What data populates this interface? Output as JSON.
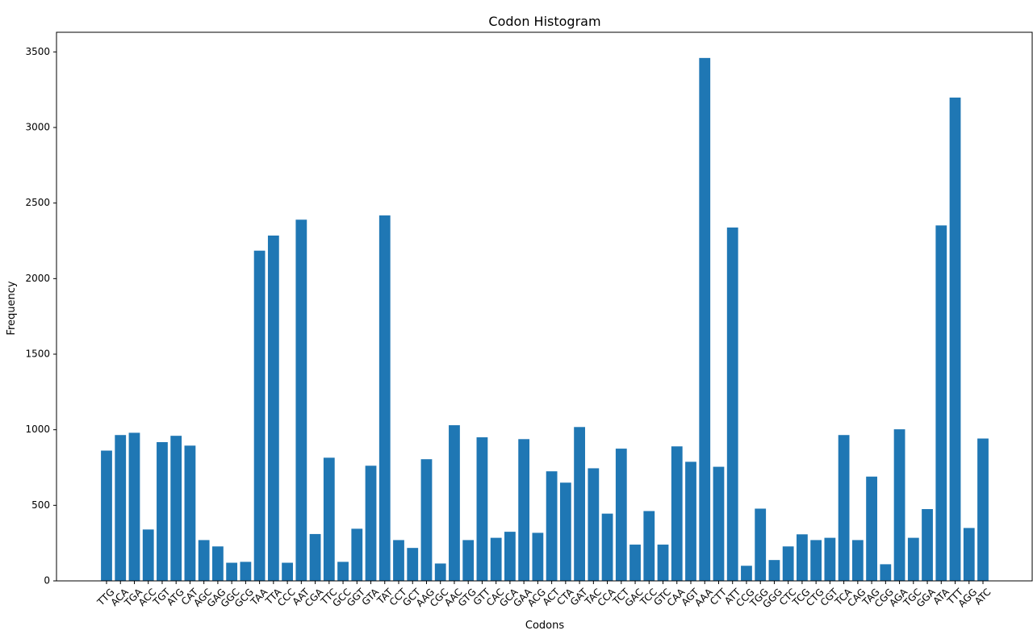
{
  "chart_data": {
    "type": "bar",
    "title": "Codon Histogram",
    "xlabel": "Codons",
    "ylabel": "Frequency",
    "ylim": [
      0,
      3630
    ],
    "yticks": [
      0,
      500,
      1000,
      1500,
      2000,
      2500,
      3000,
      3500
    ],
    "grid": false,
    "bar_color": "#1f77b4",
    "categories": [
      "TTG",
      "ACA",
      "TGA",
      "ACC",
      "TGT",
      "ATG",
      "CAT",
      "AGC",
      "GAG",
      "GGC",
      "GCG",
      "TAA",
      "TTA",
      "CCC",
      "AAT",
      "CGA",
      "TTC",
      "GCC",
      "GGT",
      "GTA",
      "TAT",
      "CCT",
      "GCT",
      "AAG",
      "CGC",
      "AAC",
      "GTG",
      "GTT",
      "CAC",
      "GCA",
      "GAA",
      "ACG",
      "ACT",
      "CTA",
      "GAT",
      "TAC",
      "CCA",
      "TCT",
      "GAC",
      "TCC",
      "GTC",
      "CAA",
      "AGT",
      "AAA",
      "CTT",
      "ATT",
      "CCG",
      "TGG",
      "GGG",
      "CTC",
      "TCG",
      "CTG",
      "CGT",
      "TCA",
      "CAG",
      "TAG",
      "CGG",
      "AGA",
      "TGC",
      "GGA",
      "ATA",
      "TTT",
      "AGG",
      "ATC"
    ],
    "values": [
      862,
      965,
      980,
      340,
      918,
      960,
      895,
      270,
      228,
      120,
      126,
      2185,
      2285,
      120,
      2390,
      310,
      815,
      126,
      345,
      762,
      2418,
      270,
      218,
      805,
      115,
      1030,
      270,
      950,
      285,
      325,
      938,
      318,
      725,
      650,
      1018,
      745,
      445,
      875,
      240,
      462,
      240,
      890,
      788,
      3460,
      755,
      2338,
      100,
      478,
      138,
      228,
      308,
      270,
      285,
      965,
      270,
      690,
      110,
      1003,
      285,
      475,
      2352,
      3198,
      350,
      942
    ]
  }
}
